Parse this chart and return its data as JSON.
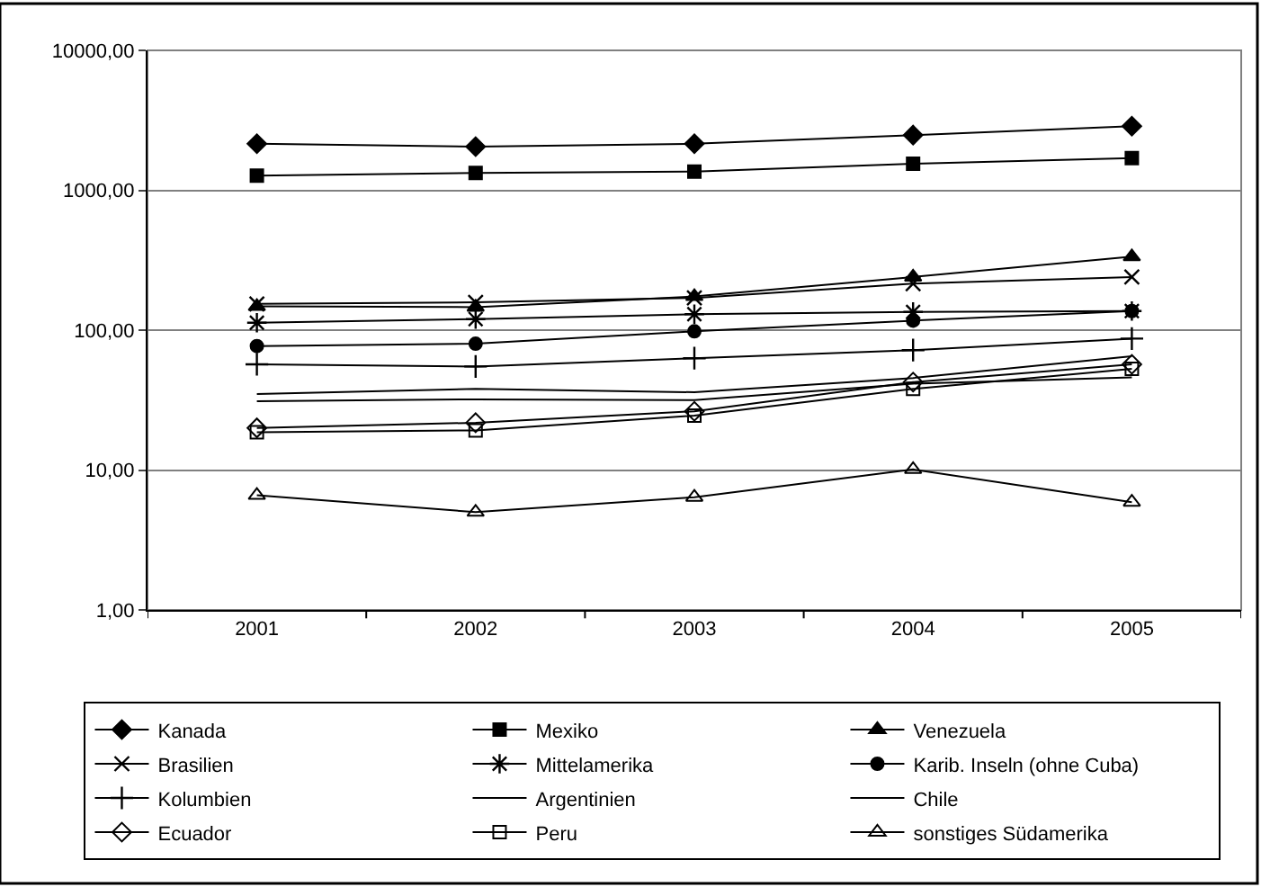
{
  "chart_data": {
    "type": "line",
    "categories": [
      "2001",
      "2002",
      "2003",
      "2004",
      "2005"
    ],
    "log": "y",
    "ylim": [
      1,
      10000
    ],
    "yticks": [
      {
        "value": 1,
        "label": "1,00"
      },
      {
        "value": 10,
        "label": "10,00"
      },
      {
        "value": 100,
        "label": "100,00"
      },
      {
        "value": 1000,
        "label": "1000,00"
      },
      {
        "value": 10000,
        "label": "10000,00"
      }
    ],
    "grid": "y",
    "legend": "bottom",
    "line_style": "solid",
    "series": [
      {
        "name": "Kanada",
        "color": "#000000",
        "marker": "diamond",
        "values": [
          2150,
          2050,
          2150,
          2480,
          2870
        ]
      },
      {
        "name": "Mexiko",
        "color": "#000000",
        "marker": "square",
        "values": [
          1270,
          1330,
          1360,
          1550,
          1700
        ]
      },
      {
        "name": "Venezuela",
        "color": "#000000",
        "marker": "triangle",
        "values": [
          148,
          146,
          174,
          240,
          335
        ]
      },
      {
        "name": "Brasilien",
        "color": "#000000",
        "marker": "x",
        "values": [
          154,
          158,
          170,
          215,
          240
        ]
      },
      {
        "name": "Mittelamerika",
        "color": "#000000",
        "marker": "cross",
        "values": [
          113,
          120,
          130,
          135,
          137
        ]
      },
      {
        "name": "Karib. Inseln (ohne Cuba)",
        "color": "#000000",
        "marker": "circle",
        "values": [
          77,
          80,
          98,
          117,
          137
        ]
      },
      {
        "name": "Kolumbien",
        "color": "#000000",
        "marker": "plus",
        "values": [
          57,
          55,
          63,
          72,
          87
        ]
      },
      {
        "name": "Argentinien",
        "color": "#000000",
        "marker": "none",
        "values": [
          31,
          32,
          31.6,
          41.5,
          46
        ]
      },
      {
        "name": "Chile",
        "color": "#000000",
        "marker": "none",
        "values": [
          35,
          38,
          36,
          45.5,
          65
        ]
      },
      {
        "name": "Ecuador",
        "color": "#000000",
        "marker": "diamond-open",
        "values": [
          20,
          21.8,
          26.3,
          42.5,
          57
        ]
      },
      {
        "name": "Peru",
        "color": "#000000",
        "marker": "square-open",
        "values": [
          18.6,
          19.2,
          24.5,
          38,
          53
        ]
      },
      {
        "name": "sonstiges Südamerika",
        "color": "#000000",
        "marker": "triangle-open",
        "values": [
          6.6,
          5.0,
          6.4,
          10.1,
          5.9
        ]
      }
    ]
  }
}
